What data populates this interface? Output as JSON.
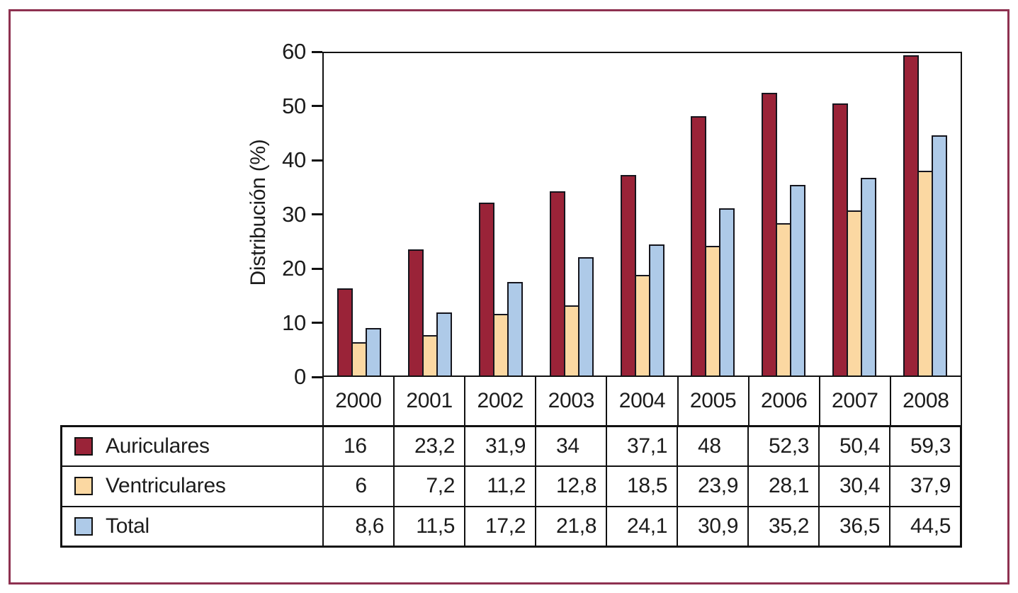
{
  "figure": {
    "border_color": "#8e3150",
    "line_color": "#111111",
    "bar_outline_color": "#15151d"
  },
  "chart_data": {
    "type": "bar",
    "title": "",
    "xlabel": "",
    "ylabel": "Distribución (%)",
    "ylim": [
      0,
      60
    ],
    "yticks": [
      0,
      10,
      20,
      30,
      40,
      50,
      60
    ],
    "grid": false,
    "legend_position": "table-left",
    "categories": [
      "2000",
      "2001",
      "2002",
      "2003",
      "2004",
      "2005",
      "2006",
      "2007",
      "2008"
    ],
    "series": [
      {
        "name": "Auriculares",
        "color": "#9a2338",
        "values": [
          16,
          23.2,
          31.9,
          34,
          37.1,
          48,
          52.3,
          50.4,
          59.3
        ],
        "display": [
          "16",
          "23,2",
          "31,9",
          "34",
          "37,1",
          "48",
          "52,3",
          "50,4",
          "59,3"
        ]
      },
      {
        "name": "Ventriculares",
        "color": "#fbd8a2",
        "values": [
          6,
          7.2,
          11.2,
          12.8,
          18.5,
          23.9,
          28.1,
          30.4,
          37.9
        ],
        "display": [
          "6",
          "7,2",
          "11,2",
          "12,8",
          "18,5",
          "23,9",
          "28,1",
          "30,4",
          "37,9"
        ]
      },
      {
        "name": "Total",
        "color": "#aecae8",
        "values": [
          8.6,
          11.5,
          17.2,
          21.8,
          24.1,
          30.9,
          35.2,
          36.5,
          44.5
        ],
        "display": [
          "8,6",
          "11,5",
          "17,2",
          "21,8",
          "24,1",
          "30,9",
          "35,2",
          "36,5",
          "44,5"
        ]
      }
    ]
  }
}
